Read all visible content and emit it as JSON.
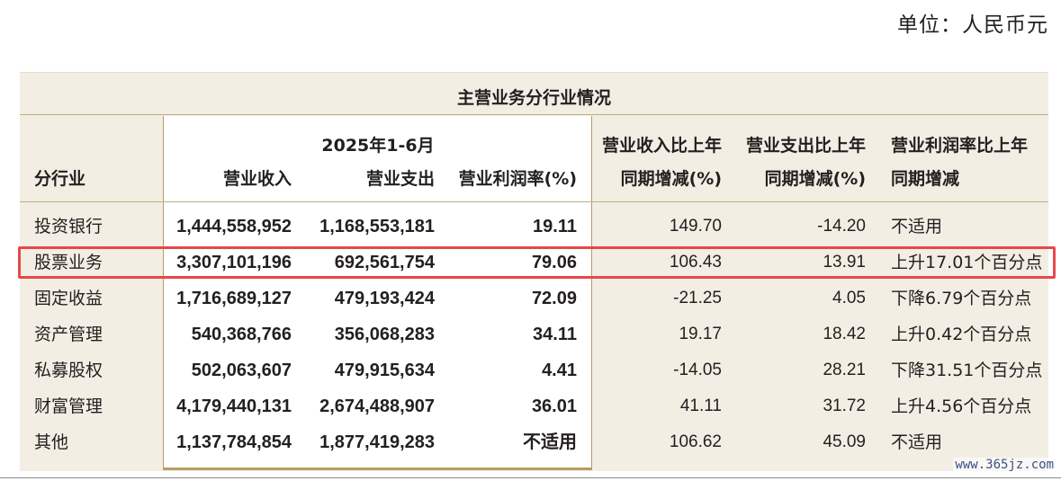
{
  "unit_label": "单位：人民币元",
  "table": {
    "title": "主营业务分行业情况",
    "period": "2025年1-6月",
    "headers": {
      "segment": "分行业",
      "revenue": "营业收入",
      "expense": "营业支出",
      "margin": "营业利润率(%)",
      "revenue_change_line1": "营业收入比上年",
      "revenue_change_line2": "同期增减(%)",
      "expense_change_line1": "营业支出比上年",
      "expense_change_line2": "同期增减(%)",
      "margin_change_line1": "营业利润率比上年",
      "margin_change_line2": "同期增减"
    },
    "rows": [
      {
        "segment": "投资银行",
        "revenue": "1,444,558,952",
        "expense": "1,168,553,181",
        "margin": "19.11",
        "revenue_change": "149.70",
        "expense_change": "-14.20",
        "margin_change": "不适用"
      },
      {
        "segment": "股票业务",
        "revenue": "3,307,101,196",
        "expense": "692,561,754",
        "margin": "79.06",
        "revenue_change": "106.43",
        "expense_change": "13.91",
        "margin_change": "上升17.01个百分点"
      },
      {
        "segment": "固定收益",
        "revenue": "1,716,689,127",
        "expense": "479,193,424",
        "margin": "72.09",
        "revenue_change": "-21.25",
        "expense_change": "4.05",
        "margin_change": "下降6.79个百分点"
      },
      {
        "segment": "资产管理",
        "revenue": "540,368,766",
        "expense": "356,068,283",
        "margin": "34.11",
        "revenue_change": "19.17",
        "expense_change": "18.42",
        "margin_change": "上升0.42个百分点"
      },
      {
        "segment": "私募股权",
        "revenue": "502,063,607",
        "expense": "479,915,634",
        "margin": "4.41",
        "revenue_change": "-14.05",
        "expense_change": "28.21",
        "margin_change": "下降31.51个百分点"
      },
      {
        "segment": "财富管理",
        "revenue": "4,179,440,131",
        "expense": "2,674,488,907",
        "margin": "36.01",
        "revenue_change": "41.11",
        "expense_change": "31.72",
        "margin_change": "上升4.56个百分点"
      },
      {
        "segment": "其他",
        "revenue": "1,137,784,854",
        "expense": "1,877,419,283",
        "margin": "不适用",
        "revenue_change": "106.62",
        "expense_change": "45.09",
        "margin_change": "不适用"
      }
    ],
    "highlighted_row": 1
  },
  "watermark": "www.365jz.com",
  "colors": {
    "header_bg": "#f3eee3",
    "rule": "#bfae86",
    "highlight": "#e8474a"
  }
}
